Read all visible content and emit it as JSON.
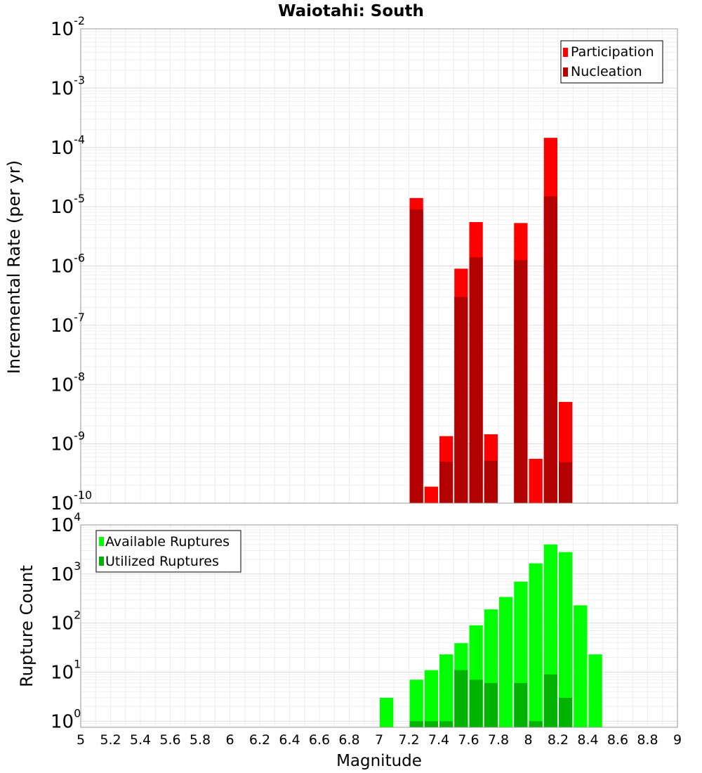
{
  "chart_data": [
    {
      "type": "bar",
      "title": "Waiotahi: South",
      "ylabel": "Incremental Rate (per yr)",
      "yscale": "log",
      "ylim": [
        1e-10,
        0.01
      ],
      "xlim": [
        5,
        9
      ],
      "legend_position": "top-right",
      "series": [
        {
          "name": "Participation",
          "color": "#ff0000",
          "x": [
            7.25,
            7.35,
            7.45,
            7.55,
            7.65,
            7.75,
            7.95,
            8.05,
            8.15,
            8.25
          ],
          "values": [
            1.4e-05,
            1.9e-10,
            1.35e-09,
            9e-07,
            5.5e-06,
            1.45e-09,
            5.3e-06,
            5.6e-10,
            0.000145,
            5.1e-09
          ]
        },
        {
          "name": "Nucleation",
          "color": "#b30000",
          "x": [
            7.25,
            7.55,
            7.45,
            7.65,
            7.75,
            7.95,
            8.15,
            8.25
          ],
          "values": [
            9e-06,
            3e-07,
            5e-10,
            1.4e-06,
            5.2e-10,
            1.25e-06,
            1.5e-05,
            4.9e-10
          ]
        }
      ]
    },
    {
      "type": "bar",
      "xlabel": "Magnitude",
      "ylabel": "Rupture Count",
      "yscale": "log",
      "ylim": [
        0.75,
        10000
      ],
      "xlim": [
        5,
        9
      ],
      "xticks": [
        "5",
        "5.2",
        "5.4",
        "5.6",
        "5.8",
        "6",
        "6.2",
        "6.4",
        "6.6",
        "6.8",
        "7",
        "7.2",
        "7.4",
        "7.6",
        "7.8",
        "8",
        "8.2",
        "8.4",
        "8.6",
        "8.8",
        "9"
      ],
      "legend_position": "top-left",
      "series": [
        {
          "name": "Available Ruptures",
          "color": "#00ff00",
          "x": [
            7.05,
            7.25,
            7.35,
            7.45,
            7.55,
            7.65,
            7.75,
            7.85,
            7.95,
            8.05,
            8.15,
            8.25,
            8.35,
            8.45
          ],
          "values": [
            3,
            7,
            11,
            23,
            39,
            90,
            190,
            340,
            700,
            1650,
            4000,
            2800,
            230,
            23
          ]
        },
        {
          "name": "Utilized Ruptures",
          "color": "#00b300",
          "x": [
            7.25,
            7.35,
            7.45,
            7.55,
            7.65,
            7.75,
            7.95,
            8.05,
            8.15,
            8.25
          ],
          "values": [
            1,
            1,
            1,
            11,
            7,
            6,
            6,
            1,
            9,
            3
          ]
        }
      ]
    }
  ]
}
